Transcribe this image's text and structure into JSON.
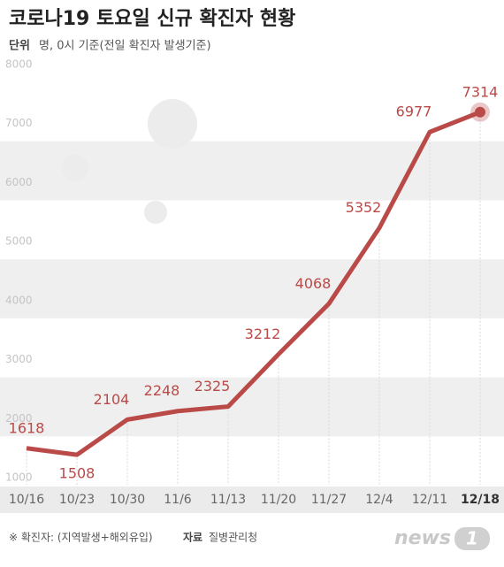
{
  "chart_data": {
    "type": "line",
    "title": "코로나19 토요일 신규 확진자 현황",
    "unit_label": "단위",
    "subtitle": "명, 0시 기준(전일 확진자 발생기준)",
    "categories": [
      "10/16",
      "10/23",
      "10/30",
      "11/6",
      "11/13",
      "11/20",
      "11/27",
      "12/4",
      "12/11",
      "12/18"
    ],
    "series": [
      {
        "name": "신규 확진자",
        "color": "#b94a48",
        "values": [
          1618,
          1508,
          2104,
          2248,
          2325,
          3212,
          4068,
          5352,
          6977,
          7314
        ]
      }
    ],
    "ylim": [
      1000,
      8000
    ],
    "yticks": [
      1000,
      2000,
      3000,
      4000,
      5000,
      6000,
      7000,
      8000
    ],
    "grid": true,
    "note": "※ 확진자: (지역발생+해외유입)",
    "source_label": "자료",
    "source": "질병관리청",
    "logo": {
      "word": "news",
      "digit": "1"
    }
  }
}
